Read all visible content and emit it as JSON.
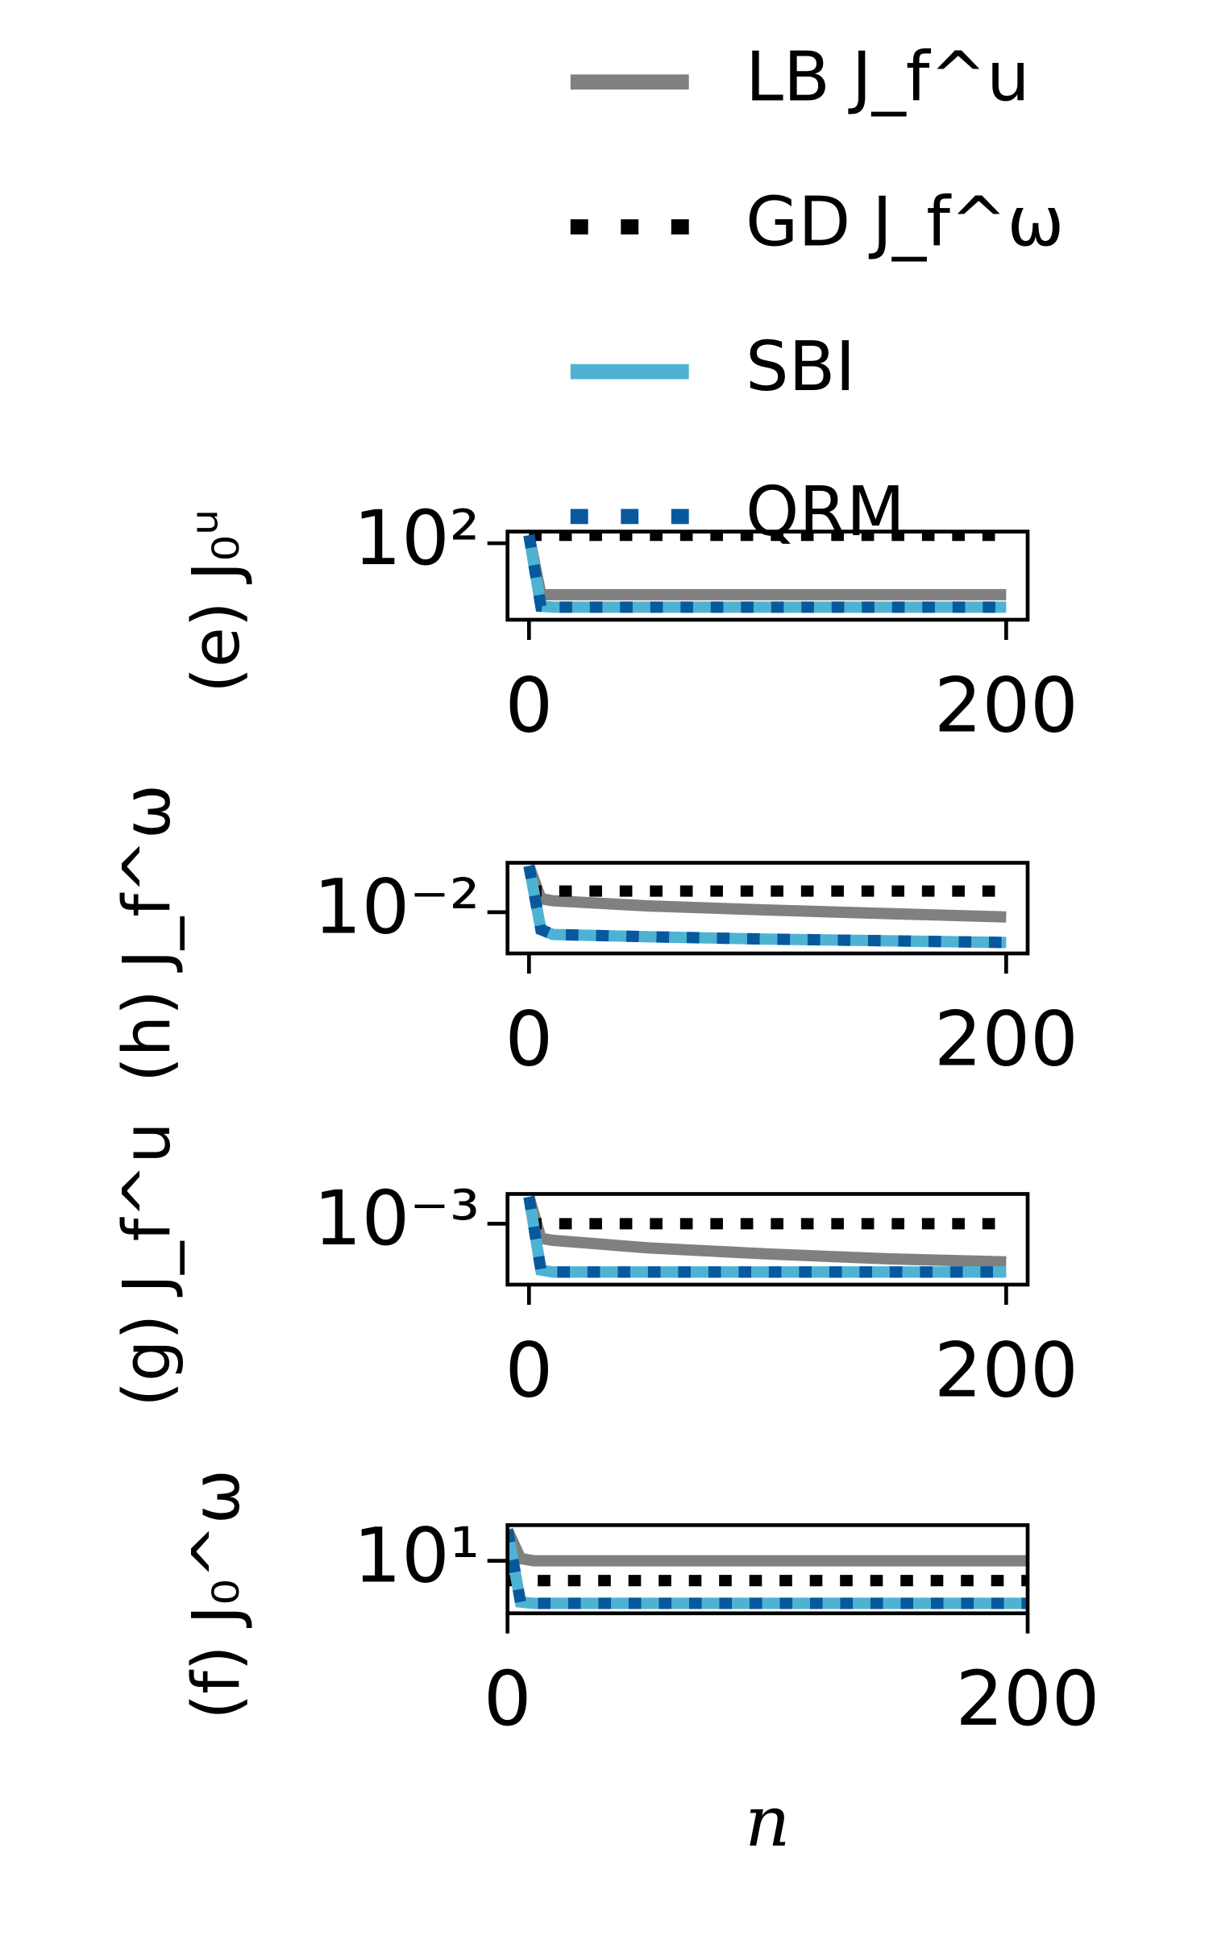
{
  "chart_data": [
    {
      "type": "line",
      "ylabel": "(e) J₀ᵘ",
      "log_y": true,
      "xlim": [
        -9,
        209
      ],
      "xticks": [
        0,
        200
      ],
      "ylim": [
        40,
        115
      ],
      "yticks": [
        {
          "value": 100,
          "label": "10²"
        }
      ],
      "x": [
        0,
        5,
        10,
        50,
        100,
        150,
        200
      ],
      "series": [
        {
          "name": "LB J_f^u",
          "color": "#808080",
          "style": "solid",
          "values": [
            110,
            54,
            54,
            54,
            54,
            54,
            54
          ]
        },
        {
          "name": "GD J_f^ω",
          "color": "#000000",
          "style": "dotted",
          "values": [
            110,
            110,
            110,
            110,
            110,
            110,
            110
          ]
        },
        {
          "name": "SBI",
          "color": "#4eb3d3",
          "style": "solid",
          "values": [
            110,
            47,
            46.5,
            46.5,
            46.5,
            46.5,
            46.5
          ]
        },
        {
          "name": "QRM",
          "color": "#08589e",
          "style": "dotted",
          "values": [
            110,
            47,
            46.5,
            46.5,
            46.5,
            46.5,
            46.5
          ]
        }
      ]
    },
    {
      "type": "line",
      "ylabel": "(h) J_f^ω",
      "log_y": true,
      "xlim": [
        -9,
        209
      ],
      "xticks": [
        0,
        200
      ],
      "ylim": [
        0.004,
        0.03
      ],
      "yticks": [
        {
          "value": 0.01,
          "label": "10⁻²"
        }
      ],
      "x": [
        0,
        5,
        10,
        50,
        100,
        150,
        200
      ],
      "series": [
        {
          "color": "#808080",
          "style": "solid",
          "values": [
            0.028,
            0.0135,
            0.0129,
            0.0115,
            0.0105,
            0.0097,
            0.009
          ]
        },
        {
          "color": "#000000",
          "style": "dotted",
          "values": [
            0.016,
            0.016,
            0.016,
            0.016,
            0.016,
            0.016,
            0.016
          ]
        },
        {
          "color": "#4eb3d3",
          "style": "solid",
          "values": [
            0.028,
            0.0068,
            0.0061,
            0.0058,
            0.0055,
            0.0053,
            0.0051
          ]
        },
        {
          "color": "#08589e",
          "style": "dotted",
          "values": [
            0.028,
            0.0068,
            0.0061,
            0.0058,
            0.0055,
            0.0053,
            0.0051
          ]
        }
      ]
    },
    {
      "type": "line",
      "ylabel": "(g) J_f^u",
      "log_y": true,
      "xlim": [
        -9,
        209
      ],
      "xticks": [
        0,
        200
      ],
      "ylim": [
        0.0003,
        0.0018
      ],
      "yticks": [
        {
          "value": 0.001,
          "label": "10⁻³"
        }
      ],
      "x": [
        0,
        5,
        10,
        50,
        100,
        150,
        200
      ],
      "series": [
        {
          "color": "#808080",
          "style": "solid",
          "values": [
            0.0017,
            0.00075,
            0.00072,
            0.00062,
            0.00055,
            0.0005,
            0.00047
          ]
        },
        {
          "color": "#000000",
          "style": "dotted",
          "values": [
            0.001,
            0.001,
            0.001,
            0.001,
            0.001,
            0.001,
            0.001
          ]
        },
        {
          "color": "#4eb3d3",
          "style": "solid",
          "values": [
            0.0017,
            0.0004,
            0.000385,
            0.000385,
            0.000385,
            0.000385,
            0.000385
          ]
        },
        {
          "color": "#08589e",
          "style": "dotted",
          "values": [
            0.0017,
            0.0004,
            0.000385,
            0.000385,
            0.000385,
            0.000385,
            0.000385
          ]
        }
      ]
    },
    {
      "type": "line",
      "ylabel": "(f) J₀^ω",
      "xlabel": "n",
      "log_y": true,
      "xlim": [
        0,
        200
      ],
      "xticks": [
        0,
        200
      ],
      "ylim": [
        5,
        16
      ],
      "yticks": [
        {
          "value": 10,
          "label": "10¹"
        }
      ],
      "x": [
        0,
        5,
        10,
        50,
        100,
        150,
        200
      ],
      "series": [
        {
          "color": "#808080",
          "style": "solid",
          "values": [
            15,
            10.3,
            10,
            10,
            10,
            10,
            10
          ]
        },
        {
          "color": "#000000",
          "style": "dotted",
          "values": [
            7.7,
            7.7,
            7.7,
            7.7,
            7.7,
            7.7,
            7.7
          ]
        },
        {
          "color": "#4eb3d3",
          "style": "solid",
          "values": [
            15,
            5.8,
            5.7,
            5.7,
            5.7,
            5.7,
            5.7
          ]
        },
        {
          "color": "#08589e",
          "style": "dotted",
          "values": [
            15,
            5.8,
            5.7,
            5.7,
            5.7,
            5.7,
            5.7
          ]
        }
      ]
    }
  ]
}
